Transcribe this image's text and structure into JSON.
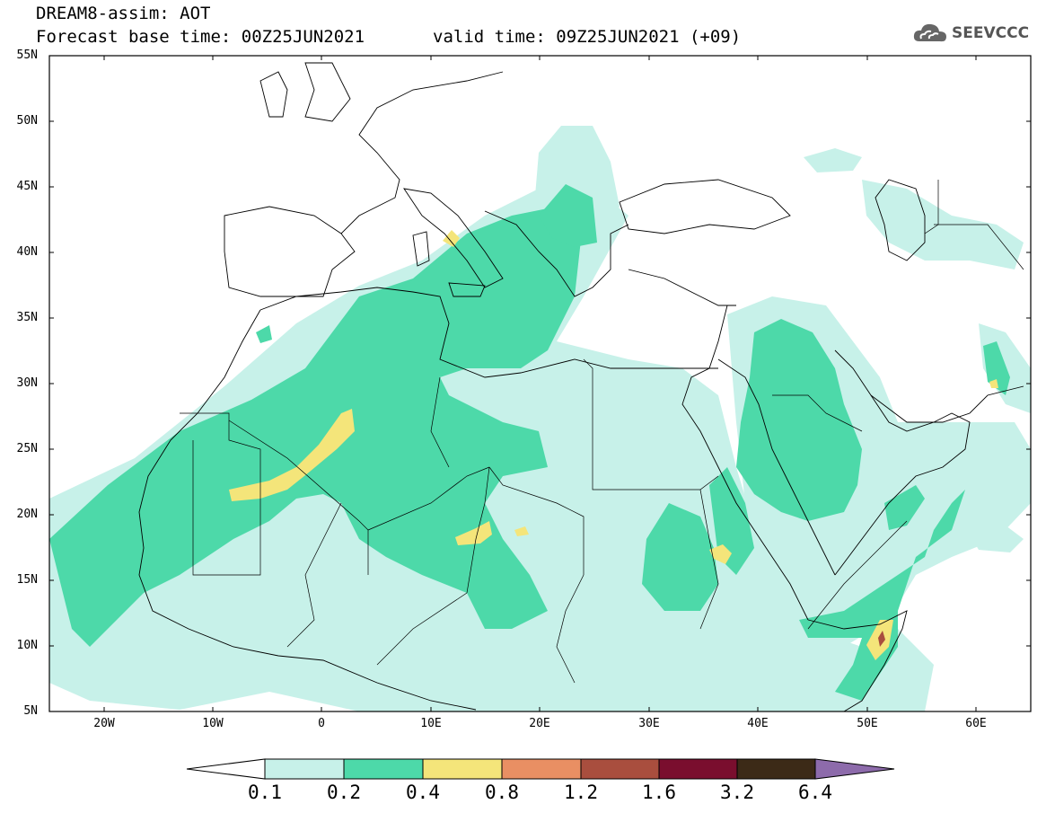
{
  "header": {
    "title": "DREAM8-assim: AOT",
    "forecast_base": "Forecast base time: 00Z25JUN2021",
    "valid": "valid time: 09Z25JUN2021 (+09)"
  },
  "logo": {
    "text": "SEEVCCC",
    "icon": "cloud-logo-icon"
  },
  "map": {
    "lat_labels": [
      "55N",
      "50N",
      "45N",
      "40N",
      "35N",
      "30N",
      "25N",
      "20N",
      "15N",
      "10N",
      "5N"
    ],
    "lon_labels": [
      "20W",
      "10W",
      "0",
      "10E",
      "20E",
      "30E",
      "40E",
      "50E",
      "60E"
    ],
    "extent": {
      "lon": [
        -25,
        65
      ],
      "lat": [
        5,
        55
      ]
    }
  },
  "colorbar": {
    "labels": [
      "0.1",
      "0.2",
      "0.4",
      "0.8",
      "1.2",
      "1.6",
      "3.2",
      "6.4"
    ],
    "colors": [
      "#ffffff",
      "#c7f1e9",
      "#4dd9a9",
      "#f4e57a",
      "#e98f63",
      "#a94e3e",
      "#7a0e2e",
      "#3c2a17",
      "#8d6bab"
    ]
  }
}
